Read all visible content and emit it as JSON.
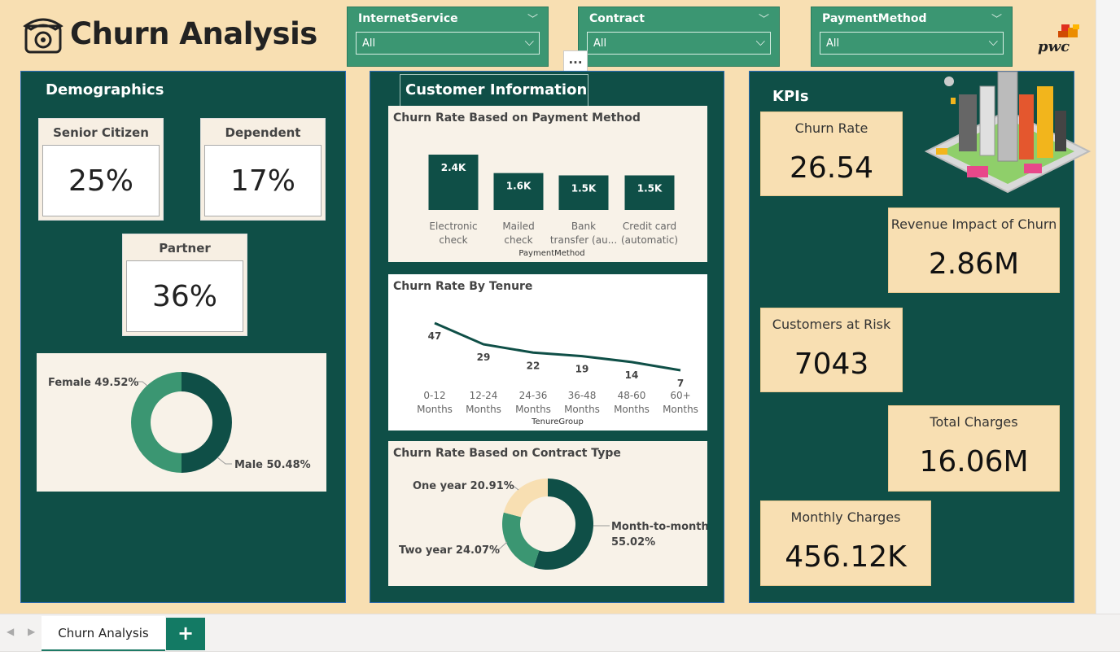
{
  "header": {
    "title": "Churn Analysis",
    "more_options": "...",
    "logo_text": "pwc"
  },
  "slicers": [
    {
      "title": "InternetService",
      "value": "All"
    },
    {
      "title": "Contract",
      "value": "All"
    },
    {
      "title": "PaymentMethod",
      "value": "All"
    }
  ],
  "demographics": {
    "heading": "Demographics",
    "senior_citizen": {
      "label": "Senior Citizen",
      "value": "25%"
    },
    "dependent": {
      "label": "Dependent",
      "value": "17%"
    },
    "partner": {
      "label": "Partner",
      "value": "36%"
    },
    "gender_chart": {
      "female_label": "Female 49.52%",
      "male_label": "Male 50.48%"
    }
  },
  "customer_info": {
    "heading": "Customer Information",
    "payment_chart_title": "Churn Rate Based on Payment Method",
    "tenure_chart_title": "Churn Rate By Tenure",
    "contract_chart_title": "Churn Rate Based on Contract Type"
  },
  "kpis": {
    "heading": "KPIs",
    "churn_rate": {
      "label": "Churn Rate",
      "value": "26.54"
    },
    "revenue_impact": {
      "label": "Revenue Impact of Churn",
      "value": "2.86M"
    },
    "customers_at_risk": {
      "label": "Customers at Risk",
      "value": "7043"
    },
    "total_charges": {
      "label": "Total Charges",
      "value": "16.06M"
    },
    "monthly_charges": {
      "label": "Monthly Charges",
      "value": "456.12K"
    }
  },
  "tabs": {
    "active": "Churn Analysis",
    "add_label": "+",
    "prev": "◀",
    "next": "▶"
  },
  "colors": {
    "panel": "#0f4f47",
    "accent": "#3b9672",
    "background": "#f8dfb2",
    "card": "#f8f2e8"
  },
  "chart_data": [
    {
      "type": "pie",
      "slices": [
        {
          "label": "Female",
          "value": 49.52,
          "data_label": "Female 49.52%",
          "color": "#3b9672"
        },
        {
          "label": "Male",
          "value": 50.48,
          "data_label": "Male 50.48%",
          "color": "#0f4f47"
        }
      ]
    },
    {
      "type": "bar",
      "title": "Churn Rate Based on Payment Method",
      "xlabel": "PaymentMethod",
      "categories": [
        [
          "Electronic",
          "check"
        ],
        [
          "Mailed",
          "check"
        ],
        [
          "Bank",
          "transfer (au..."
        ],
        [
          "Credit card",
          "(automatic)"
        ]
      ],
      "values": [
        2.4,
        1.6,
        1.5,
        1.5
      ],
      "data_labels": [
        "2.4K",
        "1.6K",
        "1.5K",
        "1.5K"
      ],
      "ylim": [
        0,
        2.4
      ]
    },
    {
      "type": "line",
      "title": "Churn Rate By Tenure",
      "xlabel": "TenureGroup",
      "categories": [
        [
          "0-12",
          "Months"
        ],
        [
          "12-24",
          "Months"
        ],
        [
          "24-36",
          "Months"
        ],
        [
          "36-48",
          "Months"
        ],
        [
          "48-60",
          "Months"
        ],
        [
          "60+",
          "Months"
        ]
      ],
      "values": [
        47,
        29,
        22,
        19,
        14,
        7
      ],
      "ylim": [
        0,
        50
      ]
    },
    {
      "type": "pie",
      "title": "Churn Rate Based on Contract Type",
      "slices": [
        {
          "label": "Month-to-month",
          "value": 55.02,
          "data_label": [
            "Month-to-month",
            "55.02%"
          ],
          "color": "#0f4f47"
        },
        {
          "label": "Two year",
          "value": 24.07,
          "data_label": [
            "Two year 24.07%"
          ],
          "color": "#3b9672"
        },
        {
          "label": "One year",
          "value": 20.91,
          "data_label": [
            "One year 20.91%"
          ],
          "color": "#f8dfb2"
        }
      ]
    }
  ]
}
